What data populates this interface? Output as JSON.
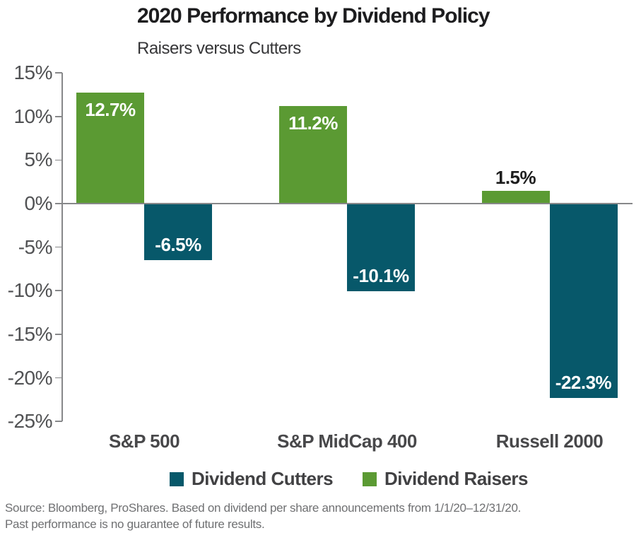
{
  "header": {
    "title": "2020 Performance by Dividend Policy",
    "subtitle": "Raisers versus Cutters"
  },
  "chart_data": {
    "type": "bar",
    "categories": [
      "S&P 500",
      "S&P MidCap 400",
      "Russell 2000"
    ],
    "series": [
      {
        "name": "Dividend Raisers",
        "color": "#5b9a33",
        "values": [
          12.7,
          11.2,
          1.5
        ],
        "labels": [
          "12.7%",
          "11.2%",
          "1.5%"
        ]
      },
      {
        "name": "Dividend Cutters",
        "color": "#07586a",
        "values": [
          -6.5,
          -10.1,
          -22.3
        ],
        "labels": [
          "-6.5%",
          "-10.1%",
          "-22.3%"
        ]
      }
    ],
    "title": "2020 Performance by Dividend Policy",
    "subtitle": "Raisers versus Cutters",
    "xlabel": "",
    "ylabel": "",
    "ylim": [
      -25,
      15
    ],
    "grid": false,
    "y_axis": {
      "ticks": [
        15,
        10,
        5,
        0,
        -5,
        -10,
        -15,
        -20,
        -25
      ],
      "tick_labels": [
        "15%",
        "10%",
        "5%",
        "0%",
        "-5%",
        "-10%",
        "-15%",
        "-20%",
        "-25%"
      ]
    },
    "legend": {
      "position": "bottom",
      "entries": [
        {
          "label": "Dividend Cutters",
          "color": "#07586a"
        },
        {
          "label": "Dividend Raisers",
          "color": "#5b9a33"
        }
      ]
    }
  },
  "footer": {
    "line1": "Source: Bloomberg, ProShares. Based on dividend per share announcements from 1/1/20–12/31/20.",
    "line2": "Past performance is no guarantee of future results."
  },
  "colors": {
    "raisers_green": "#5b9a33",
    "cutters_teal": "#07586a",
    "axis_gray": "#87888a",
    "inside_label_white": "#ffffff",
    "outside_label_dark": "#1e1e1e"
  }
}
